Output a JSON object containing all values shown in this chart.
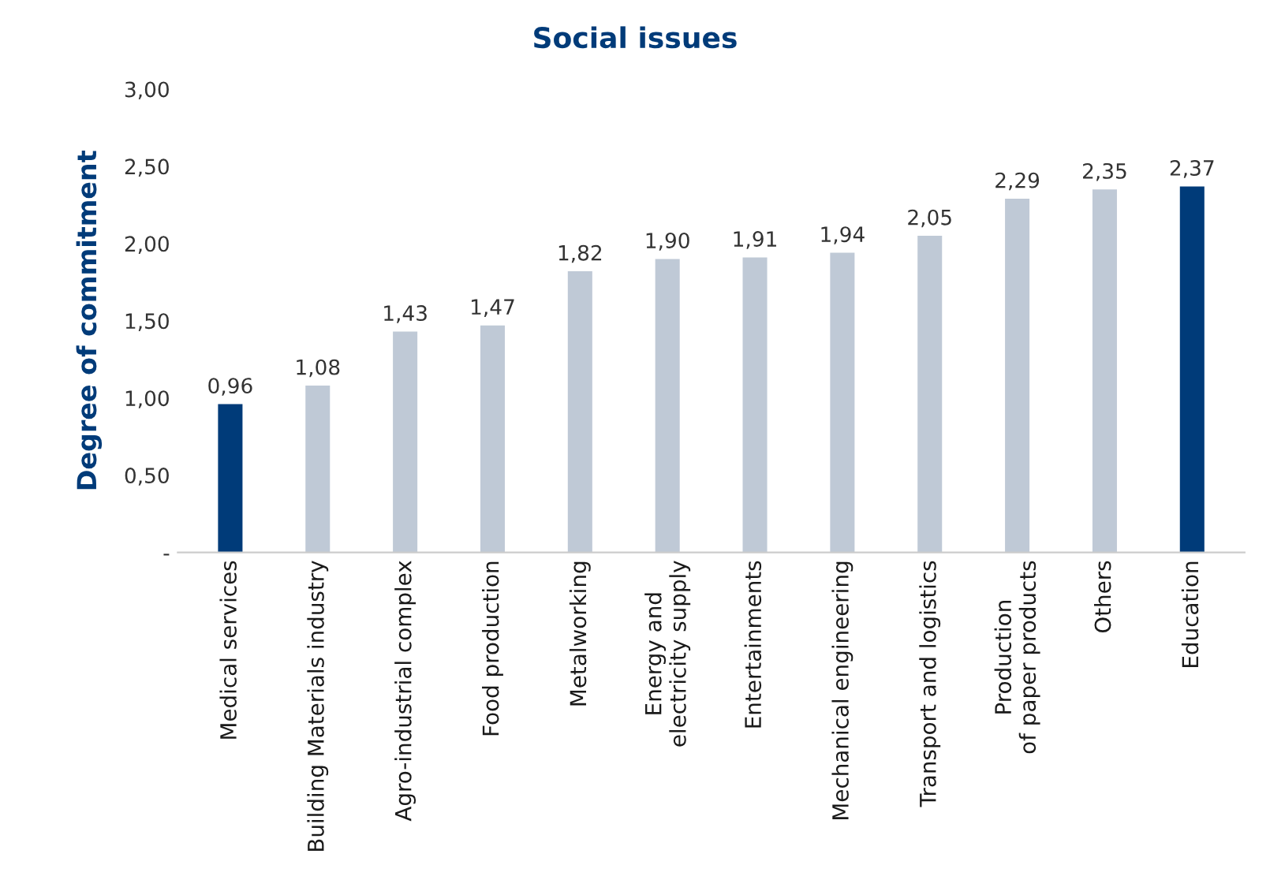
{
  "chart_data": {
    "type": "bar",
    "title": "Social issues",
    "ylabel": "Degree of commitment",
    "categories": [
      "Medical services",
      "Building Materials industry",
      "Agro-industrial complex",
      "Food production",
      "Metalworking",
      "Energy and\nelectricity supply",
      "Entertainments",
      "Mechanical engineering",
      "Transport and logistics",
      "Production\nof paper products",
      "Others",
      "Education"
    ],
    "values": [
      0.96,
      1.08,
      1.43,
      1.47,
      1.82,
      1.9,
      1.91,
      1.94,
      2.05,
      2.29,
      2.35,
      2.37
    ],
    "colors": [
      "#003b79",
      "#bfc9d6",
      "#bfc9d6",
      "#bfc9d6",
      "#bfc9d6",
      "#bfc9d6",
      "#bfc9d6",
      "#bfc9d6",
      "#bfc9d6",
      "#bfc9d6",
      "#bfc9d6",
      "#003b79"
    ],
    "value_labels": [
      "0,96",
      "1,08",
      "1,43",
      "1,47",
      "1,82",
      "1,90",
      "1,91",
      "1,94",
      "2,05",
      "2,29",
      "2,35",
      "2,37"
    ],
    "ylim": [
      0,
      3
    ],
    "yticks": [
      {
        "value": 0,
        "label": "-"
      },
      {
        "value": 0.5,
        "label": "0,50"
      },
      {
        "value": 1,
        "label": "1,00"
      },
      {
        "value": 1.5,
        "label": "1,50"
      },
      {
        "value": 2,
        "label": "2,00"
      },
      {
        "value": 2.5,
        "label": "2,50"
      },
      {
        "value": 3,
        "label": "3,00"
      }
    ],
    "grid": false,
    "legend": false
  }
}
